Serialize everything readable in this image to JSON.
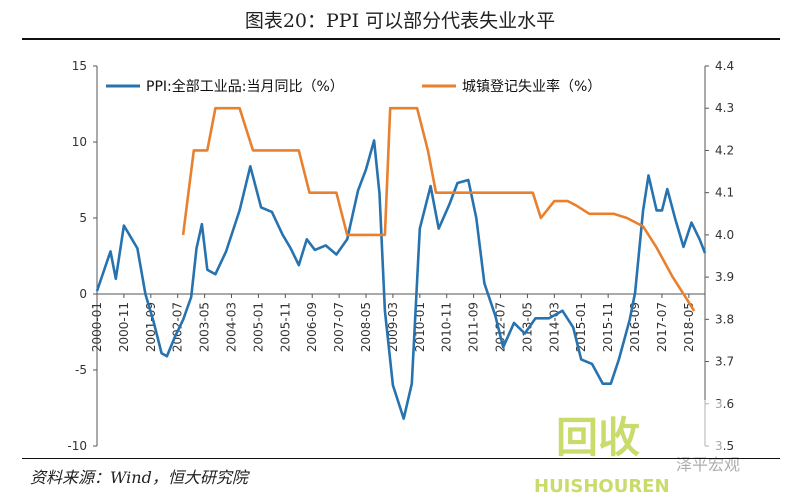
{
  "title": "图表20：PPI 可以部分代表失业水平",
  "source": "资料来源：Wind，恒大研究院",
  "watermark": "泽平宏观",
  "chart_data": {
    "type": "line",
    "xlabel": "",
    "x_ticks": [
      "2000-01",
      "2000-11",
      "2001-09",
      "2002-07",
      "2003-05",
      "2004-03",
      "2005-01",
      "2005-11",
      "2006-09",
      "2007-07",
      "2008-05",
      "2009-03",
      "2010-01",
      "2010-11",
      "2011-09",
      "2012-07",
      "2013-05",
      "2014-03",
      "2015-01",
      "2015-11",
      "2016-09",
      "2017-07",
      "2018-05"
    ],
    "x_range": [
      "2000-01",
      "2018-11"
    ],
    "left_axis": {
      "range": [
        -10,
        15
      ],
      "ticks": [
        "-10",
        "-5",
        "0",
        "5",
        "10",
        "15"
      ]
    },
    "right_axis": {
      "range": [
        3.5,
        4.4
      ],
      "ticks": [
        "3.5",
        "3.6",
        "3.7",
        "3.8",
        "3.9",
        "4.0",
        "4.1",
        "4.2",
        "4.3",
        "4.4"
      ]
    },
    "legend_placement": "top",
    "series": [
      {
        "name": "PPI:全部工业品:当月同比（%）",
        "axis": "left",
        "color": "#2673b0",
        "points": [
          [
            "2000-01",
            0.2
          ],
          [
            "2000-06",
            2.8
          ],
          [
            "2000-08",
            1.0
          ],
          [
            "2000-11",
            4.5
          ],
          [
            "2001-01",
            3.9
          ],
          [
            "2001-04",
            3.0
          ],
          [
            "2001-07",
            0.0
          ],
          [
            "2001-10",
            -1.8
          ],
          [
            "2002-01",
            -3.9
          ],
          [
            "2002-03",
            -4.1
          ],
          [
            "2002-06",
            -2.8
          ],
          [
            "2002-09",
            -1.7
          ],
          [
            "2002-12",
            -0.2
          ],
          [
            "2003-02",
            3.0
          ],
          [
            "2003-04",
            4.6
          ],
          [
            "2003-06",
            1.6
          ],
          [
            "2003-09",
            1.3
          ],
          [
            "2004-01",
            2.8
          ],
          [
            "2004-06",
            5.5
          ],
          [
            "2004-10",
            8.4
          ],
          [
            "2005-02",
            5.7
          ],
          [
            "2005-06",
            5.4
          ],
          [
            "2005-10",
            3.9
          ],
          [
            "2006-01",
            3.0
          ],
          [
            "2006-04",
            1.9
          ],
          [
            "2006-07",
            3.6
          ],
          [
            "2006-10",
            2.9
          ],
          [
            "2007-02",
            3.2
          ],
          [
            "2007-06",
            2.6
          ],
          [
            "2007-10",
            3.6
          ],
          [
            "2008-02",
            6.8
          ],
          [
            "2008-05",
            8.2
          ],
          [
            "2008-08",
            10.1
          ],
          [
            "2008-10",
            6.6
          ],
          [
            "2008-12",
            -1.1
          ],
          [
            "2009-03",
            -6.0
          ],
          [
            "2009-07",
            -8.2
          ],
          [
            "2009-10",
            -5.9
          ],
          [
            "2010-01",
            4.3
          ],
          [
            "2010-05",
            7.1
          ],
          [
            "2010-08",
            4.3
          ],
          [
            "2010-12",
            5.9
          ],
          [
            "2011-03",
            7.3
          ],
          [
            "2011-07",
            7.5
          ],
          [
            "2011-10",
            5.0
          ],
          [
            "2012-01",
            0.7
          ],
          [
            "2012-05",
            -1.4
          ],
          [
            "2012-08",
            -3.5
          ],
          [
            "2012-12",
            -1.9
          ],
          [
            "2013-04",
            -2.6
          ],
          [
            "2013-08",
            -1.6
          ],
          [
            "2014-01",
            -1.6
          ],
          [
            "2014-06",
            -1.1
          ],
          [
            "2014-10",
            -2.2
          ],
          [
            "2015-01",
            -4.3
          ],
          [
            "2015-05",
            -4.6
          ],
          [
            "2015-09",
            -5.9
          ],
          [
            "2015-12",
            -5.9
          ],
          [
            "2016-03",
            -4.3
          ],
          [
            "2016-07",
            -1.7
          ],
          [
            "2016-09",
            0.1
          ],
          [
            "2016-12",
            5.5
          ],
          [
            "2017-02",
            7.8
          ],
          [
            "2017-05",
            5.5
          ],
          [
            "2017-07",
            5.5
          ],
          [
            "2017-09",
            6.9
          ],
          [
            "2017-12",
            4.9
          ],
          [
            "2018-03",
            3.1
          ],
          [
            "2018-06",
            4.7
          ],
          [
            "2018-09",
            3.6
          ],
          [
            "2018-11",
            2.7
          ]
        ]
      },
      {
        "name": "城镇登记失业率（%）",
        "axis": "right",
        "color": "#e8802e",
        "points": [
          [
            "2002-09",
            4.0
          ],
          [
            "2003-01",
            4.2
          ],
          [
            "2003-06",
            4.2
          ],
          [
            "2003-09",
            4.3
          ],
          [
            "2004-06",
            4.3
          ],
          [
            "2004-11",
            4.2
          ],
          [
            "2006-04",
            4.2
          ],
          [
            "2006-08",
            4.1
          ],
          [
            "2007-06",
            4.1
          ],
          [
            "2007-10",
            4.0
          ],
          [
            "2008-12",
            4.0
          ],
          [
            "2009-02",
            4.3
          ],
          [
            "2009-12",
            4.3
          ],
          [
            "2010-04",
            4.2
          ],
          [
            "2010-07",
            4.1
          ],
          [
            "2013-07",
            4.1
          ],
          [
            "2013-10",
            4.04
          ],
          [
            "2014-03",
            4.08
          ],
          [
            "2014-08",
            4.08
          ],
          [
            "2014-11",
            4.07
          ],
          [
            "2015-04",
            4.05
          ],
          [
            "2015-08",
            4.05
          ],
          [
            "2016-01",
            4.05
          ],
          [
            "2016-06",
            4.04
          ],
          [
            "2016-12",
            4.02
          ],
          [
            "2017-05",
            3.97
          ],
          [
            "2017-11",
            3.9
          ],
          [
            "2018-04",
            3.85
          ],
          [
            "2018-07",
            3.82
          ]
        ]
      }
    ]
  }
}
